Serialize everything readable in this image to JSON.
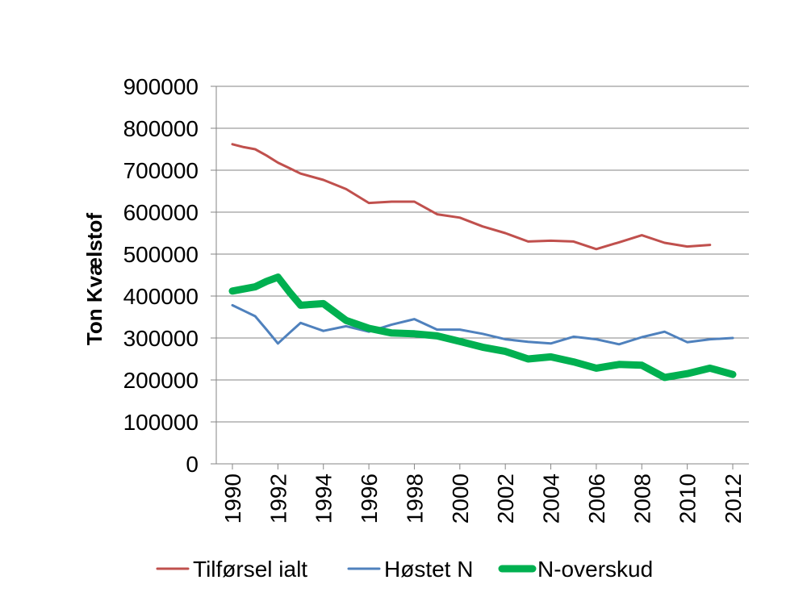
{
  "chart_data": {
    "type": "line",
    "ylabel": "Ton Kvælstof",
    "xlabel": "",
    "ylim": [
      0,
      900000
    ],
    "xlim": [
      1990,
      2012
    ],
    "y_ticks": [
      "0",
      "100000",
      "200000",
      "300000",
      "400000",
      "500000",
      "600000",
      "700000",
      "800000",
      "900000"
    ],
    "x_ticks": [
      "1990",
      "1992",
      "1994",
      "1996",
      "1998",
      "2000",
      "2002",
      "2004",
      "2006",
      "2008",
      "2010",
      "2012"
    ],
    "grid": "horizontal",
    "legend_position": "bottom",
    "series": [
      {
        "name": "Tilførsel ialt",
        "color": "#c0504d",
        "x": [
          1990,
          1990.5,
          1991,
          1991.5,
          1992,
          1992.5,
          1993,
          1994,
          1995,
          1996,
          1997,
          1998,
          1999,
          2000,
          2001,
          2002,
          2003,
          2004,
          2005,
          2006,
          2007,
          2008,
          2009,
          2010,
          2011
        ],
        "y": [
          762000,
          755000,
          750000,
          735000,
          718000,
          705000,
          692000,
          677000,
          655000,
          622000,
          625000,
          625000,
          595000,
          587000,
          566000,
          550000,
          530000,
          532000,
          530000,
          512000,
          528000,
          545000,
          527000,
          518000,
          522000
        ]
      },
      {
        "name": "Høstet N",
        "color": "#4f81bd",
        "x": [
          1990,
          1990.5,
          1991,
          1991.5,
          1992,
          1992.5,
          1993,
          1994,
          1995,
          1996,
          1997,
          1998,
          1999,
          2000,
          2001,
          2002,
          2003,
          2004,
          2005,
          2006,
          2007,
          2008,
          2009,
          2010,
          2011,
          2012
        ],
        "y": [
          378000,
          365000,
          352000,
          320000,
          287000,
          312000,
          336000,
          317000,
          328000,
          315000,
          332000,
          345000,
          320000,
          320000,
          310000,
          297000,
          291000,
          287000,
          303000,
          297000,
          285000,
          302000,
          315000,
          290000,
          297000,
          300000
        ]
      },
      {
        "name": "N-overskud",
        "color": "#00b050",
        "x": [
          1990,
          1991,
          1991.5,
          1992,
          1992.5,
          1993,
          1994,
          1995,
          1996,
          1997,
          1998,
          1999,
          2000,
          2001,
          2002,
          2003,
          2004,
          2005,
          2006,
          2007,
          2008,
          2009,
          2010,
          2011,
          2012
        ],
        "y": [
          412000,
          422000,
          435000,
          445000,
          410000,
          378000,
          382000,
          342000,
          323000,
          312000,
          310000,
          305000,
          292000,
          278000,
          268000,
          250000,
          255000,
          243000,
          228000,
          237000,
          235000,
          206000,
          215000,
          228000,
          213000
        ]
      }
    ]
  }
}
